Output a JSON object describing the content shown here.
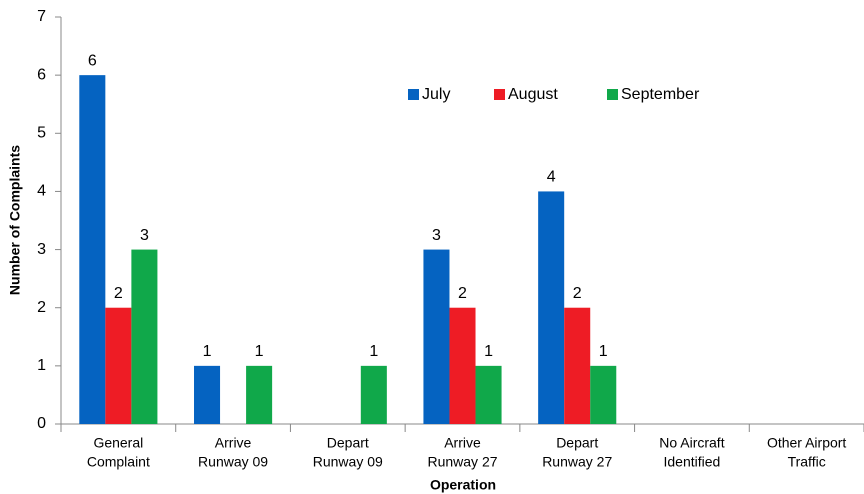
{
  "chart_data": {
    "type": "bar",
    "x_label": "Operation",
    "y_label": "Number of Complaints",
    "categories": [
      [
        "General",
        "Complaint"
      ],
      [
        "Arrive",
        "Runway 09"
      ],
      [
        "Depart",
        "Runway 09"
      ],
      [
        "Arrive",
        "Runway 27"
      ],
      [
        "Depart",
        "Runway 27"
      ],
      [
        "No Aircraft",
        "Identified"
      ],
      [
        "Other Airport",
        "Traffic"
      ]
    ],
    "series": [
      {
        "name": "July",
        "color": "#0563c1",
        "values": [
          6,
          1,
          null,
          3,
          4,
          null,
          null
        ]
      },
      {
        "name": "August",
        "color": "#ee1c25",
        "values": [
          2,
          null,
          null,
          2,
          2,
          null,
          null
        ]
      },
      {
        "name": "September",
        "color": "#10a84a",
        "values": [
          3,
          1,
          1,
          1,
          1,
          null,
          null
        ]
      }
    ],
    "ylim": [
      0,
      7
    ],
    "yticks": [
      0,
      1,
      2,
      3,
      4,
      5,
      6,
      7
    ],
    "grid": false,
    "legend": "top"
  }
}
